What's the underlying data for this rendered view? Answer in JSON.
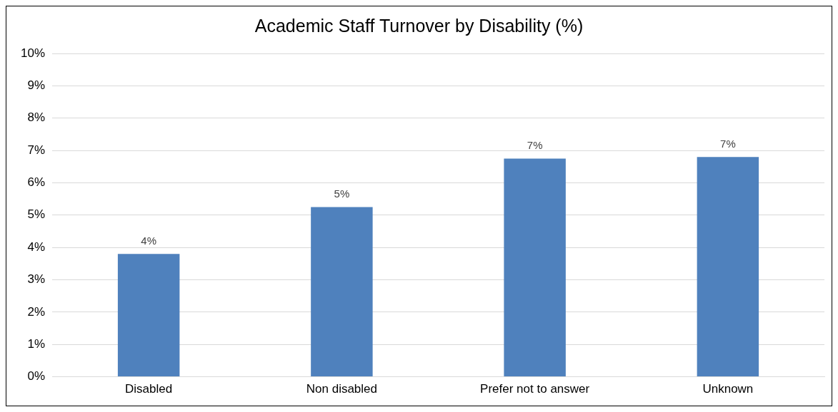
{
  "chart_data": {
    "type": "bar",
    "title": "Academic Staff Turnover by Disability (%)",
    "categories": [
      "Disabled",
      "Non disabled",
      "Prefer not to answer",
      "Unknown"
    ],
    "series": [
      {
        "color": "#4f81bd",
        "values": [
          3.8,
          5.25,
          6.75,
          6.8
        ],
        "value_labels": [
          "4%",
          "5%",
          "7%",
          "7%"
        ]
      }
    ],
    "ylim": [
      0,
      10
    ],
    "yticks": [
      {
        "value": 0,
        "label": "0%"
      },
      {
        "value": 1,
        "label": "1%"
      },
      {
        "value": 2,
        "label": "2%"
      },
      {
        "value": 3,
        "label": "3%"
      },
      {
        "value": 4,
        "label": "4%"
      },
      {
        "value": 5,
        "label": "5%"
      },
      {
        "value": 6,
        "label": "6%"
      },
      {
        "value": 7,
        "label": "7%"
      },
      {
        "value": 8,
        "label": "8%"
      },
      {
        "value": 9,
        "label": "9%"
      },
      {
        "value": 10,
        "label": "10%"
      }
    ],
    "grid": "y",
    "legend": false
  }
}
